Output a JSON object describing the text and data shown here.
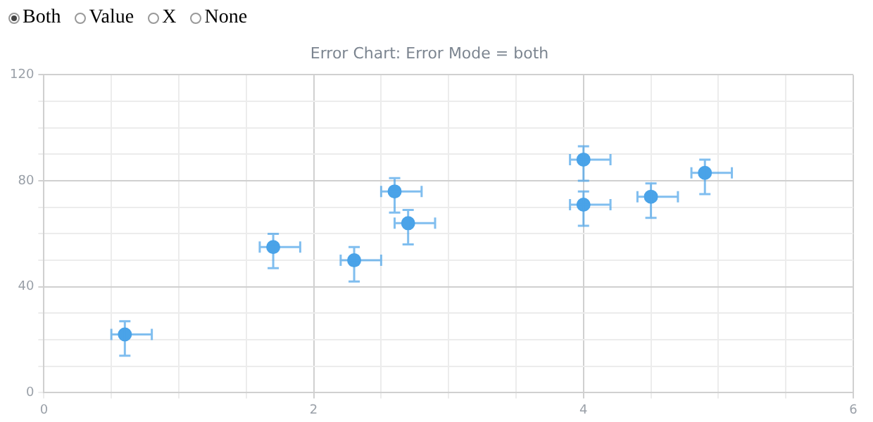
{
  "chart_data": {
    "type": "scatter",
    "title": "Error Chart: Error Mode = both",
    "annotations": [
      "Both",
      "Value",
      "X",
      "None"
    ],
    "x": [
      0.6,
      1.7,
      2.3,
      2.6,
      2.7,
      4,
      4,
      4.5,
      4.9
    ],
    "series": [
      {
        "color": "#4aa3e8",
        "values": [
          22,
          55,
          50,
          76,
          64,
          88,
          71,
          74,
          83
        ],
        "errors": [
          [
            14,
            27
          ],
          [
            47,
            60
          ],
          [
            42,
            55
          ],
          [
            68,
            81
          ],
          [
            56,
            69
          ],
          [
            80,
            93
          ],
          [
            63,
            76
          ],
          [
            66,
            79
          ],
          [
            75,
            88
          ]
        ],
        "xerrors": [
          [
            0.5,
            0.8
          ],
          [
            1.6,
            1.9
          ],
          [
            2.2,
            2.5
          ],
          [
            2.5,
            2.8
          ],
          [
            2.6,
            2.9
          ],
          [
            3.9,
            4.2
          ],
          [
            3.9,
            4.2
          ],
          [
            4.4,
            4.7
          ],
          [
            4.8,
            5.1
          ]
        ]
      }
    ],
    "xlim": [
      0,
      6
    ],
    "xticks": [
      0,
      {
        "value": 0.5,
        "label": null
      },
      {
        "value": 1,
        "label": null
      },
      {
        "value": 1.5,
        "label": null
      },
      2,
      {
        "value": 2.5,
        "label": null
      },
      {
        "value": 3,
        "label": null
      },
      {
        "value": 3.5,
        "label": null
      },
      4,
      {
        "value": 4.5,
        "label": null
      },
      {
        "value": 5,
        "label": null
      },
      {
        "value": 5.5,
        "label": null
      },
      6
    ],
    "ylim": [
      0,
      120
    ],
    "yticks": [
      0,
      {
        "value": 10,
        "label": null
      },
      {
        "value": 20,
        "label": null
      },
      {
        "value": 30,
        "label": null
      },
      40,
      {
        "value": 50,
        "label": null
      },
      {
        "value": 60,
        "label": null
      },
      {
        "value": 70,
        "label": null
      },
      80,
      {
        "value": 90,
        "label": null
      },
      {
        "value": 100,
        "label": null
      },
      {
        "value": 110,
        "label": null
      },
      120
    ],
    "grid": true,
    "legend": false,
    "marker": "circle"
  }
}
